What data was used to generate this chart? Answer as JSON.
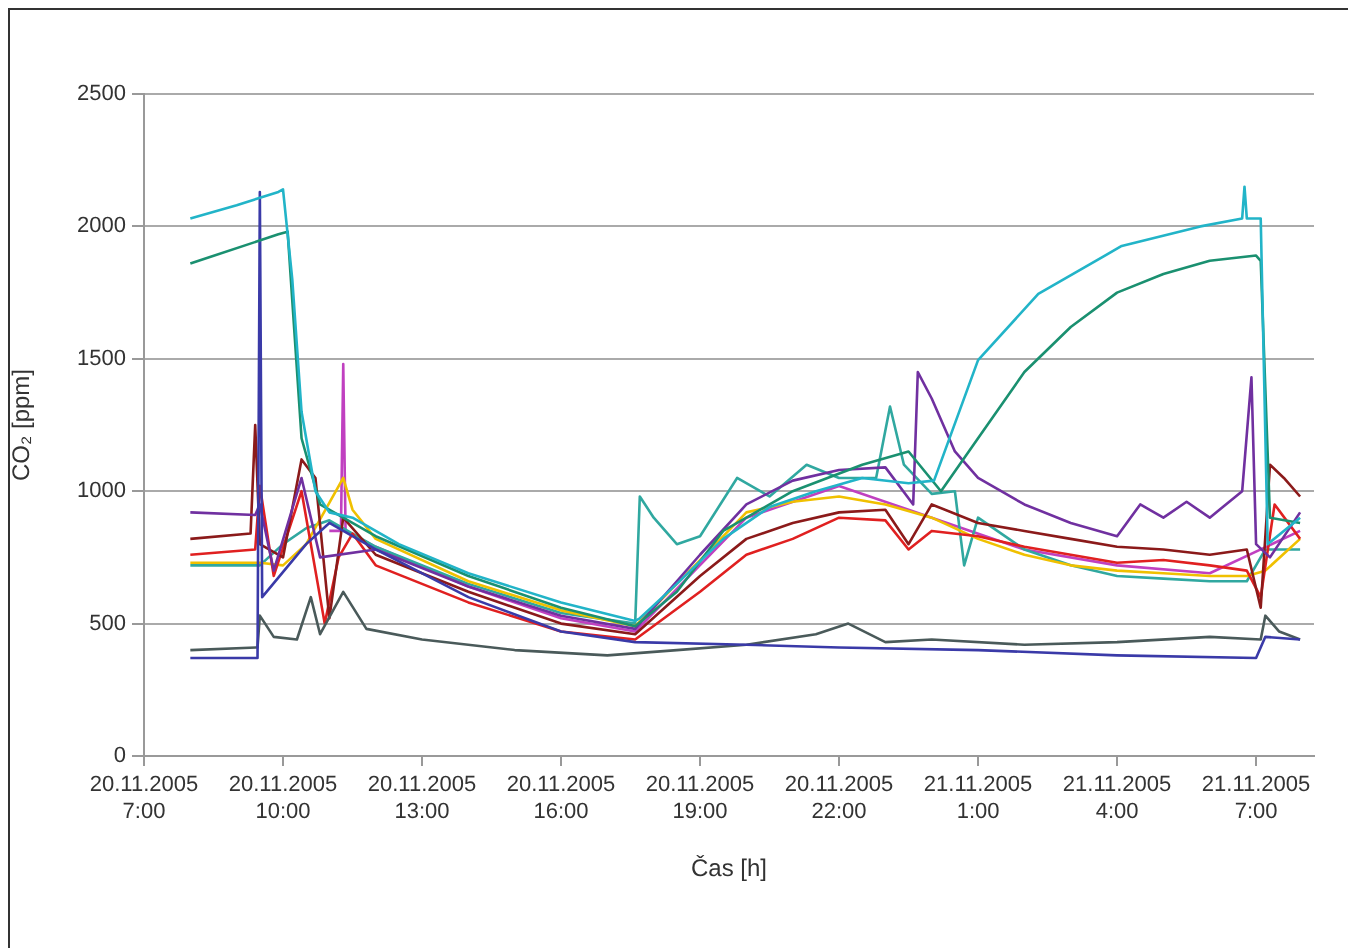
{
  "chart_data": {
    "type": "line",
    "xlabel": "Čas [h]",
    "ylabel": "CO₂ [ppm]",
    "xlim": [
      "2005-11-20T07:00",
      "2005-11-21T08:15"
    ],
    "xticks": [
      {
        "value": "2005-11-20T07:00",
        "label": "20.11.2005\n7:00"
      },
      {
        "value": "2005-11-20T10:00",
        "label": "20.11.2005\n10:00"
      },
      {
        "value": "2005-11-20T13:00",
        "label": "20.11.2005\n13:00"
      },
      {
        "value": "2005-11-20T16:00",
        "label": "20.11.2005\n16:00"
      },
      {
        "value": "2005-11-20T19:00",
        "label": "20.11.2005\n19:00"
      },
      {
        "value": "2005-11-20T22:00",
        "label": "20.11.2005\n22:00"
      },
      {
        "value": "2005-11-21T01:00",
        "label": "21.11.2005\n1:00"
      },
      {
        "value": "2005-11-21T04:00",
        "label": "21.11.2005\n4:00"
      },
      {
        "value": "2005-11-21T07:00",
        "label": "21.11.2005\n7:00"
      }
    ],
    "ylim": [
      0,
      2500
    ],
    "yticks": [
      0,
      500,
      1000,
      1500,
      2000,
      2500
    ],
    "grid": "y",
    "legend": false,
    "marker": "none",
    "line_style": "solid",
    "series": [
      {
        "color": "#22b4c8",
        "x": [
          "2005-11-20T08:00",
          "2005-11-20T09:00",
          "2005-11-20T09:54",
          "2005-11-20T10:00",
          "2005-11-20T10:12",
          "2005-11-20T10:24",
          "2005-11-20T10:42",
          "2005-11-20T11:00",
          "2005-11-20T11:30",
          "2005-11-20T12:30",
          "2005-11-20T14:00",
          "2005-11-20T16:00",
          "2005-11-20T17:36",
          "2005-11-20T17:42",
          "2005-11-20T18:30",
          "2005-11-20T19:30",
          "2005-11-20T20:30",
          "2005-11-20T21:30",
          "2005-11-20T22:30",
          "2005-11-20T23:30",
          "2005-11-21T00:03",
          "2005-11-21T01:00",
          "2005-11-21T02:18",
          "2005-11-21T04:06",
          "2005-11-21T05:48",
          "2005-11-21T06:42",
          "2005-11-21T06:45",
          "2005-11-21T06:48",
          "2005-11-21T07:06",
          "2005-11-21T07:15",
          "2005-11-21T07:57"
        ],
        "values": [
          2030,
          2080,
          2130,
          2140,
          1800,
          1300,
          1000,
          920,
          900,
          800,
          690,
          580,
          510,
          520,
          650,
          820,
          940,
          1000,
          1050,
          1030,
          1040,
          1495,
          1745,
          1926,
          2000,
          2030,
          2150,
          2030,
          2030,
          800,
          900
        ]
      },
      {
        "color": "#1a9070",
        "x": [
          "2005-11-20T08:00",
          "2005-11-20T09:54",
          "2005-11-20T10:06",
          "2005-11-20T10:24",
          "2005-11-20T10:48",
          "2005-11-20T12:00",
          "2005-11-20T14:00",
          "2005-11-20T16:00",
          "2005-11-20T17:36",
          "2005-11-20T18:30",
          "2005-11-20T19:30",
          "2005-11-20T21:00",
          "2005-11-20T22:30",
          "2005-11-20T23:30",
          "2005-11-21T00:12",
          "2005-11-21T01:00",
          "2005-11-21T02:00",
          "2005-11-21T03:00",
          "2005-11-21T04:00",
          "2005-11-21T05:00",
          "2005-11-21T06:00",
          "2005-11-21T07:00",
          "2005-11-21T07:06",
          "2005-11-21T07:18",
          "2005-11-21T07:57"
        ],
        "values": [
          1860,
          1970,
          1980,
          1200,
          950,
          830,
          680,
          560,
          490,
          620,
          850,
          1000,
          1100,
          1150,
          1000,
          1200,
          1450,
          1620,
          1750,
          1820,
          1870,
          1890,
          1870,
          900,
          880
        ]
      },
      {
        "color": "#3a3aa8",
        "x": [
          "2005-11-20T08:00",
          "2005-11-20T09:27",
          "2005-11-20T09:30",
          "2005-11-20T09:33",
          "2005-11-20T10:30",
          "2005-11-20T11:00",
          "2005-11-20T12:00",
          "2005-11-20T14:00",
          "2005-11-20T16:00",
          "2005-11-20T17:36",
          "2005-11-20T20:00",
          "2005-11-20T22:00",
          "2005-11-21T01:00",
          "2005-11-21T04:00",
          "2005-11-21T07:00",
          "2005-11-21T07:12",
          "2005-11-21T07:57"
        ],
        "values": [
          370,
          370,
          2130,
          600,
          800,
          880,
          780,
          600,
          470,
          430,
          420,
          410,
          400,
          380,
          370,
          450,
          440
        ]
      },
      {
        "color": "#4a5a5a",
        "x": [
          "2005-11-20T08:00",
          "2005-11-20T09:27",
          "2005-11-20T09:30",
          "2005-11-20T09:48",
          "2005-11-20T10:18",
          "2005-11-20T10:36",
          "2005-11-20T10:48",
          "2005-11-20T11:18",
          "2005-11-20T11:48",
          "2005-11-20T13:00",
          "2005-11-20T15:00",
          "2005-11-20T17:00",
          "2005-11-20T18:30",
          "2005-11-20T20:00",
          "2005-11-20T21:30",
          "2005-11-20T22:12",
          "2005-11-20T23:00",
          "2005-11-21T00:00",
          "2005-11-21T02:00",
          "2005-11-21T04:00",
          "2005-11-21T06:00",
          "2005-11-21T07:06",
          "2005-11-21T07:12",
          "2005-11-21T07:30",
          "2005-11-21T07:57"
        ],
        "values": [
          400,
          410,
          530,
          450,
          440,
          600,
          460,
          620,
          480,
          440,
          400,
          380,
          400,
          420,
          460,
          500,
          430,
          440,
          420,
          430,
          450,
          440,
          530,
          470,
          440
        ]
      },
      {
        "color": "#7030a0",
        "x": [
          "2005-11-20T08:00",
          "2005-11-20T09:24",
          "2005-11-20T09:30",
          "2005-11-20T09:48",
          "2005-11-20T10:24",
          "2005-11-20T10:48",
          "2005-11-20T12:00",
          "2005-11-20T14:00",
          "2005-11-20T16:00",
          "2005-11-20T17:36",
          "2005-11-20T19:00",
          "2005-11-20T20:00",
          "2005-11-20T21:00",
          "2005-11-20T22:00",
          "2005-11-20T23:00",
          "2005-11-20T23:36",
          "2005-11-20T23:42",
          "2005-11-21T00:00",
          "2005-11-21T00:30",
          "2005-11-21T01:00",
          "2005-11-21T02:00",
          "2005-11-21T03:00",
          "2005-11-21T04:00",
          "2005-11-21T04:30",
          "2005-11-21T05:00",
          "2005-11-21T05:30",
          "2005-11-21T06:00",
          "2005-11-21T06:42",
          "2005-11-21T06:54",
          "2005-11-21T07:00",
          "2005-11-21T07:18",
          "2005-11-21T07:57"
        ],
        "values": [
          920,
          910,
          950,
          700,
          1050,
          750,
          780,
          640,
          530,
          480,
          760,
          950,
          1040,
          1080,
          1090,
          950,
          1450,
          1350,
          1150,
          1050,
          950,
          880,
          830,
          950,
          900,
          960,
          900,
          1000,
          1430,
          800,
          750,
          920
        ]
      },
      {
        "color": "#8b1a1a",
        "x": [
          "2005-11-20T08:00",
          "2005-11-20T09:18",
          "2005-11-20T09:24",
          "2005-11-20T09:30",
          "2005-11-20T10:00",
          "2005-11-20T10:24",
          "2005-11-20T10:42",
          "2005-11-20T11:00",
          "2005-11-20T11:18",
          "2005-11-20T12:00",
          "2005-11-20T14:00",
          "2005-11-20T16:00",
          "2005-11-20T17:36",
          "2005-11-20T19:00",
          "2005-11-20T20:00",
          "2005-11-20T21:00",
          "2005-11-20T22:00",
          "2005-11-20T23:00",
          "2005-11-20T23:30",
          "2005-11-21T00:00",
          "2005-11-21T01:00",
          "2005-11-21T02:00",
          "2005-11-21T03:00",
          "2005-11-21T04:00",
          "2005-11-21T05:00",
          "2005-11-21T06:00",
          "2005-11-21T06:48",
          "2005-11-21T07:06",
          "2005-11-21T07:18",
          "2005-11-21T07:36",
          "2005-11-21T07:57"
        ],
        "values": [
          820,
          840,
          1250,
          800,
          750,
          1120,
          1050,
          520,
          900,
          760,
          620,
          500,
          460,
          680,
          820,
          880,
          920,
          930,
          800,
          950,
          880,
          850,
          820,
          790,
          780,
          760,
          780,
          560,
          1100,
          1050,
          980
        ]
      },
      {
        "color": "#e02020",
        "x": [
          "2005-11-20T08:00",
          "2005-11-20T09:24",
          "2005-11-20T09:30",
          "2005-11-20T09:48",
          "2005-11-20T10:24",
          "2005-11-20T10:54",
          "2005-11-20T11:12",
          "2005-11-20T11:30",
          "2005-11-20T12:00",
          "2005-11-20T14:00",
          "2005-11-20T16:00",
          "2005-11-20T17:36",
          "2005-11-20T19:00",
          "2005-11-20T20:00",
          "2005-11-20T21:00",
          "2005-11-20T22:00",
          "2005-11-20T23:00",
          "2005-11-20T23:30",
          "2005-11-21T00:00",
          "2005-11-21T01:00",
          "2005-11-21T02:00",
          "2005-11-21T03:00",
          "2005-11-21T04:00",
          "2005-11-21T05:00",
          "2005-11-21T06:00",
          "2005-11-21T06:48",
          "2005-11-21T07:06",
          "2005-11-21T07:24",
          "2005-11-21T07:57"
        ],
        "values": [
          760,
          780,
          1020,
          680,
          1000,
          500,
          750,
          840,
          720,
          580,
          470,
          440,
          620,
          760,
          820,
          900,
          890,
          780,
          850,
          830,
          790,
          760,
          730,
          740,
          720,
          700,
          600,
          950,
          820
        ]
      },
      {
        "color": "#f0c000",
        "x": [
          "2005-11-20T08:00",
          "2005-11-20T09:30",
          "2005-11-20T10:00",
          "2005-11-20T10:30",
          "2005-11-20T11:18",
          "2005-11-20T11:30",
          "2005-11-20T12:00",
          "2005-11-20T14:00",
          "2005-11-20T16:00",
          "2005-11-20T17:36",
          "2005-11-20T19:00",
          "2005-11-20T20:00",
          "2005-11-20T21:00",
          "2005-11-20T22:00",
          "2005-11-20T23:00",
          "2005-11-21T00:00",
          "2005-11-21T01:00",
          "2005-11-21T02:00",
          "2005-11-21T03:00",
          "2005-11-21T04:00",
          "2005-11-21T05:00",
          "2005-11-21T06:00",
          "2005-11-21T06:48",
          "2005-11-21T07:12",
          "2005-11-21T07:57"
        ],
        "values": [
          730,
          730,
          720,
          800,
          1050,
          930,
          820,
          660,
          550,
          490,
          740,
          920,
          960,
          980,
          950,
          900,
          820,
          760,
          720,
          700,
          690,
          680,
          680,
          700,
          820
        ]
      },
      {
        "color": "#30a8a0",
        "x": [
          "2005-11-20T08:00",
          "2005-11-20T09:30",
          "2005-11-20T10:00",
          "2005-11-20T10:30",
          "2005-11-20T11:00",
          "2005-11-20T12:00",
          "2005-11-20T14:00",
          "2005-11-20T16:00",
          "2005-11-20T17:36",
          "2005-11-20T17:42",
          "2005-11-20T18:00",
          "2005-11-20T18:30",
          "2005-11-20T19:00",
          "2005-11-20T19:48",
          "2005-11-20T20:30",
          "2005-11-20T21:18",
          "2005-11-20T22:00",
          "2005-11-20T22:48",
          "2005-11-20T23:06",
          "2005-11-20T23:24",
          "2005-11-21T00:00",
          "2005-11-21T00:30",
          "2005-11-21T00:42",
          "2005-11-21T01:00",
          "2005-11-21T02:00",
          "2005-11-21T03:00",
          "2005-11-21T04:00",
          "2005-11-21T05:00",
          "2005-11-21T06:00",
          "2005-11-21T06:48",
          "2005-11-21T07:12",
          "2005-11-21T07:57"
        ],
        "values": [
          720,
          720,
          800,
          860,
          890,
          790,
          650,
          540,
          500,
          980,
          900,
          800,
          830,
          1050,
          980,
          1100,
          1050,
          1050,
          1320,
          1100,
          990,
          1000,
          720,
          900,
          780,
          720,
          680,
          670,
          660,
          660,
          780,
          780
        ]
      },
      {
        "color": "#c040c0",
        "x": [
          "2005-11-20T11:00",
          "2005-11-20T11:15",
          "2005-11-20T11:18",
          "2005-11-20T11:21",
          "2005-11-20T12:00",
          "2005-11-20T14:00",
          "2005-11-20T16:00",
          "2005-11-20T17:36",
          "2005-11-20T20:00",
          "2005-11-20T22:00",
          "2005-11-21T00:00",
          "2005-11-21T02:00",
          "2005-11-21T04:00",
          "2005-11-21T06:00",
          "2005-11-21T07:57"
        ],
        "values": [
          850,
          850,
          1480,
          850,
          790,
          640,
          520,
          470,
          900,
          1020,
          900,
          780,
          720,
          690,
          850
        ]
      }
    ]
  }
}
